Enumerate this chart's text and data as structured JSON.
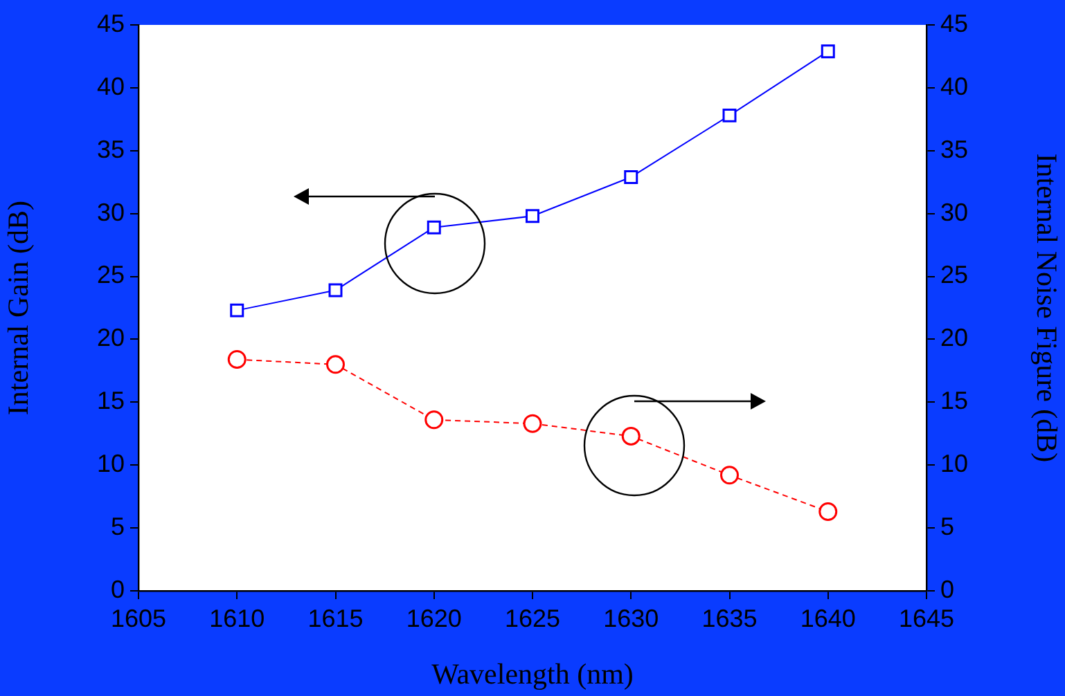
{
  "chart_data": {
    "type": "line",
    "xlabel": "Wavelength (nm)",
    "ylabel": "Internal Gain (dB)",
    "y2label": "Internal Noise Figure (dB)",
    "x": [
      1610,
      1615,
      1620,
      1625,
      1630,
      1635,
      1640
    ],
    "series": [
      {
        "color": "#0000ff",
        "marker": "square",
        "line_style": "solid",
        "values": [
          22.3,
          23.9,
          28.9,
          29.8,
          32.9,
          37.8,
          42.9
        ]
      },
      {
        "color": "#ff0000",
        "marker": "circle",
        "line_style": "dashed",
        "axis": "y2",
        "values": [
          18.4,
          18.0,
          13.6,
          13.3,
          12.3,
          9.2,
          6.3
        ]
      }
    ],
    "xlim": [
      1605,
      1645
    ],
    "xticks": [
      1605,
      1610,
      1615,
      1620,
      1625,
      1630,
      1635,
      1640,
      1645
    ],
    "ylim": [
      0,
      45
    ],
    "yticks": [
      0,
      5,
      10,
      15,
      20,
      25,
      30,
      35,
      40,
      45
    ],
    "y2lim": [
      0,
      45
    ],
    "y2ticks": [
      0,
      5,
      10,
      15,
      20,
      25,
      30,
      35,
      40,
      45
    ],
    "grid": false,
    "legend": false
  }
}
